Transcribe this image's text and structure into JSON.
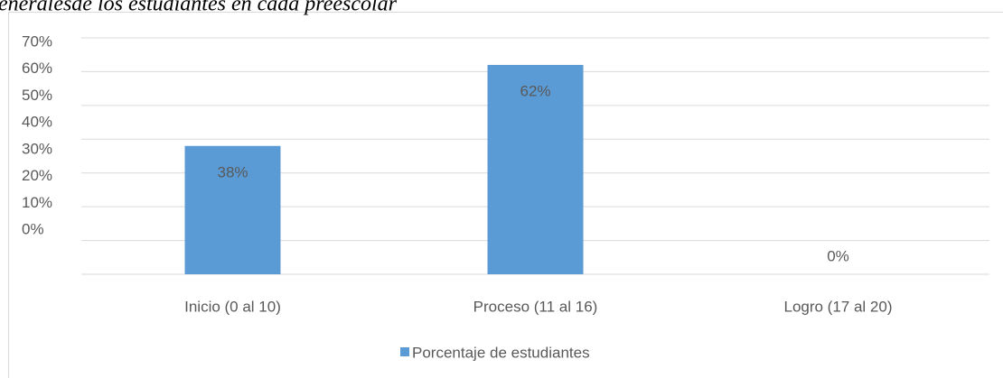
{
  "chart_data": {
    "type": "bar",
    "title": "eneralesde los estudiantes en cada preescolar",
    "categories": [
      "Inicio (0 al 10)",
      "Proceso (11 al 16)",
      "Logro (17 al 20)"
    ],
    "series": [
      {
        "name": "Porcentaje de estudiantes",
        "color": "#5b9bd5",
        "values": [
          38,
          62,
          0
        ],
        "value_labels": [
          "38%",
          "62%",
          "0%"
        ]
      }
    ],
    "ylim": [
      0,
      70
    ],
    "yticks": [
      {
        "value": 0,
        "label": "0%"
      },
      {
        "value": 10,
        "label": "10%"
      },
      {
        "value": 20,
        "label": "20%"
      },
      {
        "value": 30,
        "label": "30%"
      },
      {
        "value": 40,
        "label": "40%"
      },
      {
        "value": 50,
        "label": "50%"
      },
      {
        "value": 60,
        "label": "60%"
      },
      {
        "value": 70,
        "label": "70%"
      }
    ],
    "grid": true,
    "legend": "bottom"
  }
}
